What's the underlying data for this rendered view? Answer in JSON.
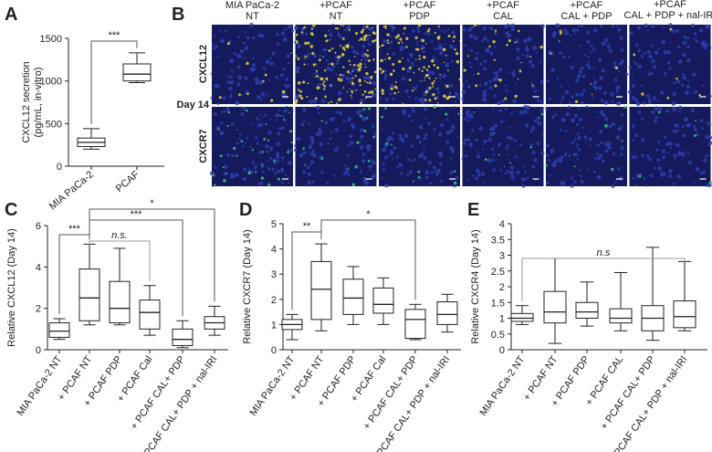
{
  "chart_data": [
    {
      "type": "box",
      "panel": "A",
      "ylabel": [
        "CXCL12 secretion",
        "(pg/mL, in-vitro)"
      ],
      "categories": [
        "MIA PaCa-2",
        "PCAF"
      ],
      "boxes": [
        {
          "low": 200,
          "q1": 230,
          "median": 280,
          "q3": 330,
          "high": 440
        },
        {
          "low": 980,
          "q1": 1000,
          "median": 1080,
          "q3": 1200,
          "high": 1330
        }
      ],
      "ylim": [
        0,
        1500
      ],
      "yticks": [
        0,
        500,
        1000,
        1500
      ],
      "comparisons": [
        {
          "from": 0,
          "to": 1,
          "label": "***"
        }
      ]
    },
    {
      "type": "box",
      "panel": "C",
      "ylabel": [
        "Relative CXCL12 (Day 14)"
      ],
      "categories": [
        "MIA PaCa-2 NT",
        "+ PCAF NT",
        "+ PCAF PDP",
        "+ PCAF Cal",
        "+ PCAF CAL+ PDP",
        "+ PCAF CAL+ PDP + nal-IRI"
      ],
      "boxes": [
        {
          "low": 0.5,
          "q1": 0.6,
          "median": 0.9,
          "q3": 1.3,
          "high": 1.5
        },
        {
          "low": 1.2,
          "q1": 1.4,
          "median": 2.5,
          "q3": 3.9,
          "high": 5.1
        },
        {
          "low": 1.2,
          "q1": 1.3,
          "median": 2.0,
          "q3": 3.3,
          "high": 4.9
        },
        {
          "low": 0.7,
          "q1": 1.0,
          "median": 1.8,
          "q3": 2.4,
          "high": 3.1
        },
        {
          "low": 0.1,
          "q1": 0.2,
          "median": 0.5,
          "q3": 1.0,
          "high": 1.4
        },
        {
          "low": 0.7,
          "q1": 1.0,
          "median": 1.3,
          "q3": 1.6,
          "high": 2.1
        }
      ],
      "ylim": [
        0,
        6
      ],
      "yticks": [
        0,
        2,
        4,
        6
      ],
      "comparisons": [
        {
          "from": 0,
          "to": 1,
          "label": "***"
        },
        {
          "from": 1,
          "to": 3,
          "label": "n.s."
        },
        {
          "from": 1,
          "to": 4,
          "label": "***"
        },
        {
          "from": 1,
          "to": 5,
          "label": "*"
        }
      ]
    },
    {
      "type": "box",
      "panel": "D",
      "ylabel": [
        "Relative CXCR7 (Day 14)"
      ],
      "categories": [
        "MIA PaCa-2 NT",
        "+ PCAF NT",
        "+ PCAF PDP",
        "+ PCAF Cal",
        "+ PCAF CAL+ PDP",
        "+ PCAF CAL+ PDP + nal-IRI"
      ],
      "boxes": [
        {
          "low": 0.4,
          "q1": 0.8,
          "median": 1.0,
          "q3": 1.2,
          "high": 1.4
        },
        {
          "low": 0.75,
          "q1": 1.2,
          "median": 2.4,
          "q3": 3.5,
          "high": 4.2
        },
        {
          "low": 1.0,
          "q1": 1.4,
          "median": 2.05,
          "q3": 2.8,
          "high": 3.3
        },
        {
          "low": 1.0,
          "q1": 1.45,
          "median": 1.8,
          "q3": 2.45,
          "high": 2.85
        },
        {
          "low": 0.4,
          "q1": 0.45,
          "median": 1.2,
          "q3": 1.6,
          "high": 1.8
        },
        {
          "low": 0.7,
          "q1": 1.0,
          "median": 1.4,
          "q3": 1.9,
          "high": 2.2
        }
      ],
      "ylim": [
        0,
        5
      ],
      "yticks": [
        0,
        1,
        2,
        3,
        4,
        5
      ],
      "comparisons": [
        {
          "from": 0,
          "to": 1,
          "label": "**"
        },
        {
          "from": 1,
          "to": 4,
          "label": "*"
        }
      ]
    },
    {
      "type": "box",
      "panel": "E",
      "ylabel": [
        "Relative CXCR4 (Day 14)"
      ],
      "categories": [
        "MIA PaCa-2 NT",
        "+ PCAF NT",
        "+ PCAF PDP",
        "+ PCAF CAL",
        "+ PCAF CAL+ PDP",
        "+ PCAF CAL+ PDP + nal-IRI"
      ],
      "boxes": [
        {
          "low": 0.8,
          "q1": 0.9,
          "median": 1.0,
          "q3": 1.15,
          "high": 1.4
        },
        {
          "low": 0.2,
          "q1": 0.85,
          "median": 1.2,
          "q3": 1.85,
          "high": 2.9
        },
        {
          "low": 0.75,
          "q1": 1.0,
          "median": 1.2,
          "q3": 1.5,
          "high": 2.15
        },
        {
          "low": 0.6,
          "q1": 0.85,
          "median": 1.0,
          "q3": 1.3,
          "high": 2.45
        },
        {
          "low": 0.3,
          "q1": 0.6,
          "median": 1.0,
          "q3": 1.4,
          "high": 3.25
        },
        {
          "low": 0.6,
          "q1": 0.7,
          "median": 1.05,
          "q3": 1.55,
          "high": 2.8
        }
      ],
      "ylim": [
        0,
        4
      ],
      "yticks": [
        0,
        0.5,
        1,
        1.5,
        2,
        2.5,
        3,
        3.5,
        4
      ],
      "comparisons": [
        {
          "from": 0,
          "to": 5,
          "label": "n.s"
        }
      ]
    }
  ],
  "panel_b": {
    "label": "B",
    "columns": [
      [
        "MIA PaCa-2",
        "NT"
      ],
      [
        "+PCAF",
        "NT"
      ],
      [
        "+PCAF",
        "PDP"
      ],
      [
        "+PCAF",
        "CAL"
      ],
      [
        "+PCAF",
        "CAL + PDP"
      ],
      [
        "+PCAF",
        "CAL + PDP + nal-IRI"
      ]
    ],
    "rows": [
      "CXCL12",
      "CXCR7"
    ],
    "timepoint": "Day 14"
  }
}
